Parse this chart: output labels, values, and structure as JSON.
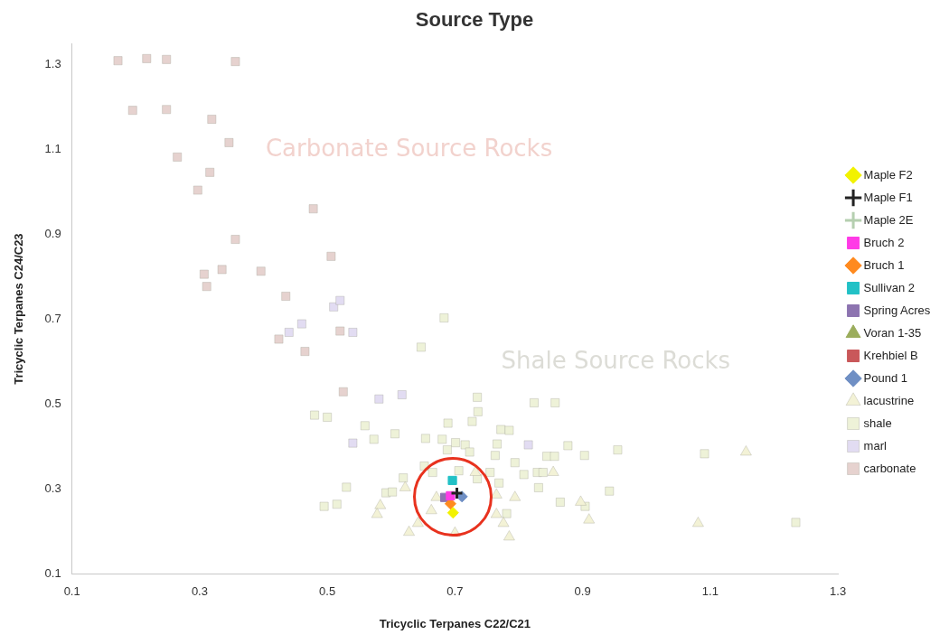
{
  "chart_data": {
    "type": "scatter",
    "title": "Source Type",
    "xlabel": "Tricyclic Terpanes C22/C21",
    "ylabel": "Tricyclic Terpanes C24/C23",
    "xlim": [
      0.1,
      1.3
    ],
    "xticks": [
      0.1,
      0.3,
      0.5,
      0.7,
      0.9,
      1.1,
      1.3
    ],
    "ylim": [
      0.1,
      1.35
    ],
    "yticks": [
      0.1,
      0.3,
      0.5,
      0.7,
      0.9,
      1.1,
      1.3
    ],
    "legend": "right",
    "annotations": [
      "Carbonate Source Rocks",
      "Shale Source Rocks"
    ],
    "series": [
      {
        "name": "carbonate",
        "color": "#e6d2cf",
        "marker": "square",
        "x": [
          0.172,
          0.217,
          0.248,
          0.356,
          0.195,
          0.248,
          0.319,
          0.346,
          0.265,
          0.316,
          0.297,
          0.478,
          0.356,
          0.506,
          0.307,
          0.335,
          0.396,
          0.311,
          0.435,
          0.52,
          0.424,
          0.465,
          0.525
        ],
        "values": [
          1.31,
          1.315,
          1.313,
          1.308,
          1.193,
          1.195,
          1.172,
          1.117,
          1.083,
          1.047,
          1.005,
          0.961,
          0.889,
          0.849,
          0.807,
          0.818,
          0.814,
          0.778,
          0.755,
          0.673,
          0.654,
          0.625,
          0.53
        ]
      },
      {
        "name": "marl",
        "color": "#e2dcf2",
        "marker": "square",
        "x": [
          0.44,
          0.46,
          0.51,
          0.52,
          0.54,
          0.581,
          0.617,
          0.54,
          0.815
        ],
        "values": [
          0.67,
          0.69,
          0.73,
          0.745,
          0.67,
          0.513,
          0.523,
          0.409,
          0.405
        ]
      },
      {
        "name": "shale",
        "color": "#eef2d8",
        "marker": "square",
        "x": [
          0.683,
          0.647,
          0.735,
          0.736,
          0.727,
          0.689,
          0.824,
          0.857,
          0.559,
          0.573,
          0.606,
          0.654,
          0.68,
          0.701,
          0.716,
          0.688,
          0.723,
          0.772,
          0.785,
          0.766,
          0.763,
          0.844,
          0.856,
          0.877,
          0.903,
          0.955,
          0.794,
          0.706,
          0.735,
          0.755,
          0.808,
          0.829,
          0.838,
          0.652,
          0.665,
          0.619,
          0.592,
          0.602,
          0.831,
          0.865,
          0.942,
          0.904,
          0.781,
          0.769,
          0.48,
          0.5,
          0.495,
          0.515,
          0.53,
          1.091,
          1.234
        ],
        "values": [
          0.704,
          0.635,
          0.517,
          0.483,
          0.46,
          0.456,
          0.504,
          0.504,
          0.45,
          0.418,
          0.431,
          0.42,
          0.418,
          0.41,
          0.405,
          0.393,
          0.388,
          0.441,
          0.439,
          0.407,
          0.38,
          0.378,
          0.378,
          0.403,
          0.38,
          0.393,
          0.363,
          0.344,
          0.325,
          0.34,
          0.335,
          0.34,
          0.34,
          0.355,
          0.34,
          0.327,
          0.292,
          0.294,
          0.304,
          0.27,
          0.296,
          0.26,
          0.243,
          0.315,
          0.475,
          0.47,
          0.26,
          0.265,
          0.305,
          0.384,
          0.222
        ]
      },
      {
        "name": "lacustrine",
        "color": "#f3f2d6",
        "marker": "triangle",
        "x": [
          0.622,
          0.583,
          0.578,
          0.628,
          0.642,
          0.671,
          0.7,
          0.765,
          0.765,
          0.776,
          0.785,
          0.794,
          0.854,
          0.897,
          0.91,
          0.732,
          0.663,
          1.081,
          1.156
        ],
        "values": [
          0.304,
          0.262,
          0.241,
          0.199,
          0.22,
          0.281,
          0.197,
          0.287,
          0.241,
          0.22,
          0.188,
          0.281,
          0.34,
          0.27,
          0.228,
          0.34,
          0.25,
          0.22,
          0.388
        ]
      },
      {
        "name": "Pound 1",
        "color": "#6f8fc4",
        "marker": "diamond",
        "x": [
          0.711
        ],
        "values": [
          0.283
        ]
      },
      {
        "name": "Krehbiel B",
        "color": "#c9585a",
        "marker": "square",
        "x": [
          null
        ],
        "values": [
          null
        ]
      },
      {
        "name": "Voran 1-35",
        "color": "#9bad5c",
        "marker": "triangle",
        "x": [
          null
        ],
        "values": [
          null
        ]
      },
      {
        "name": "Spring Acres",
        "color": "#8d74b0",
        "marker": "square",
        "x": [
          0.684
        ],
        "values": [
          0.281
        ]
      },
      {
        "name": "Sullivan 2",
        "color": "#22c1c6",
        "marker": "square",
        "x": [
          0.696
        ],
        "values": [
          0.321
        ]
      },
      {
        "name": "Bruch 1",
        "color": "#ff8a1f",
        "marker": "diamond",
        "x": [
          0.693
        ],
        "values": [
          0.266
        ]
      },
      {
        "name": "Bruch 2",
        "color": "#ff3be6",
        "marker": "square",
        "x": [
          0.693
        ],
        "values": [
          0.285
        ]
      },
      {
        "name": "Maple 2E",
        "color": "#b5cfb0",
        "marker": "cross",
        "x": [
          null
        ],
        "values": [
          null
        ]
      },
      {
        "name": "Maple F1",
        "color": "#222222",
        "marker": "cross",
        "x": [
          0.703
        ],
        "values": [
          0.291
        ]
      },
      {
        "name": "Maple F2",
        "color": "#f2f200",
        "marker": "diamond",
        "x": [
          0.697
        ],
        "values": [
          0.245
        ]
      }
    ]
  }
}
